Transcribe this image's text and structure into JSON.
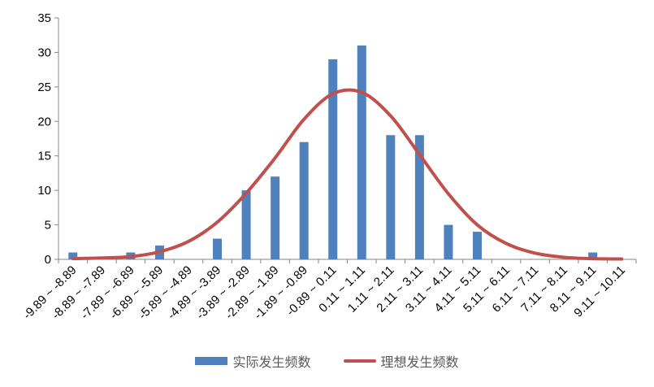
{
  "chart_data": {
    "type": "bar",
    "title": "",
    "xlabel": "",
    "ylabel": "",
    "ylim": [
      0,
      35
    ],
    "yticks": [
      0,
      5,
      10,
      15,
      20,
      25,
      30,
      35
    ],
    "grid": false,
    "legend_position": "bottom",
    "categories": [
      "-9.89 ~ -8.89",
      "-8.89 ~ -7.89",
      "-7.89 ~ -6.89",
      "-6.89 ~ -5.89",
      "-5.89 ~ -4.89",
      "-4.89 ~ -3.89",
      "-3.89 ~ -2.89",
      "-2.89 ~ -1.89",
      "-1.89 ~ -0.89",
      "-0.89 ~ 0.11",
      "0.11 ~ 1.11",
      "1.11 ~ 2.11",
      "2.11 ~ 3.11",
      "3.11 ~ 4.11",
      "4.11 ~ 5.11",
      "5.11 ~ 6.11",
      "6.11 ~ 7.11",
      "7.11 ~ 8.11",
      "8.11 ~ 9.11",
      "9.11 ~ 10.11"
    ],
    "series": [
      {
        "name": "实际发生频数",
        "kind": "bar",
        "color": "#4f81bd",
        "values": [
          1,
          0,
          1,
          2,
          0,
          3,
          10,
          12,
          17,
          29,
          31,
          18,
          18,
          5,
          4,
          0,
          0,
          0,
          1,
          0
        ]
      },
      {
        "name": "理想发生频数",
        "kind": "line",
        "color": "#c0504d",
        "values": [
          0.1,
          0.2,
          0.4,
          1.1,
          2.6,
          5.4,
          9.6,
          14.7,
          20.3,
          24.0,
          24.2,
          20.8,
          15.2,
          9.5,
          5.0,
          2.3,
          0.9,
          0.3,
          0.1,
          0.05
        ]
      }
    ]
  }
}
